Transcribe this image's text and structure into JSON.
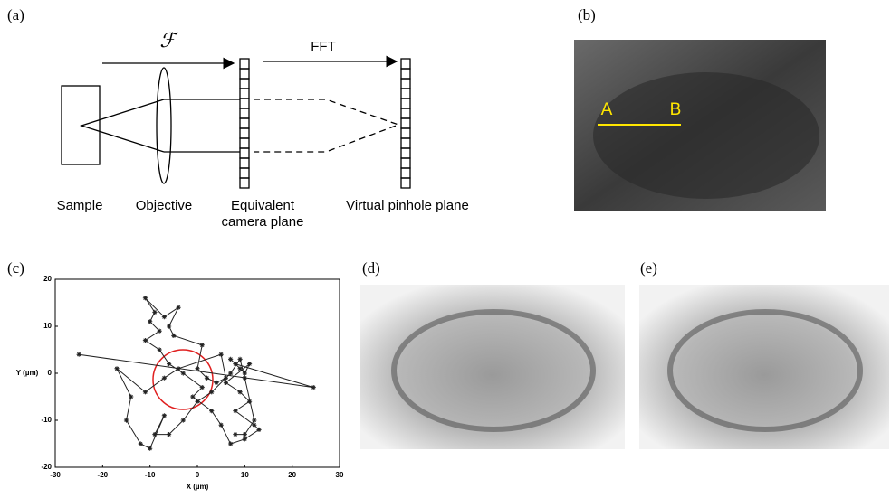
{
  "panels": {
    "a": "(a)",
    "b": "(b)",
    "c": "(c)",
    "d": "(d)",
    "e": "(e)"
  },
  "diagram": {
    "fourier": "ℱ",
    "fft": "FFT",
    "sample": "Sample",
    "objective": "Objective",
    "camera_plane": [
      "Equivalent",
      "camera plane"
    ],
    "pinhole_plane": "Virtual pinhole plane"
  },
  "image_b": {
    "point_a": "A",
    "point_b": "B"
  },
  "chart_data": {
    "type": "line",
    "xlabel": "X (µm)",
    "ylabel": "Y (µm)",
    "x": [
      -25,
      24.5,
      8,
      9,
      7,
      10,
      11,
      6,
      9,
      11,
      8,
      12,
      13,
      10,
      7,
      5,
      3,
      -1,
      1,
      -3,
      -6,
      -8,
      -11,
      -8,
      -10,
      -9,
      -11,
      -7,
      -4,
      -6,
      -5,
      1,
      0,
      2,
      4,
      6,
      5,
      -4,
      -7,
      -11,
      -17,
      -14,
      -15,
      -12,
      -10,
      -7,
      -9,
      -6,
      -3,
      0,
      3,
      7,
      9,
      10,
      12,
      10,
      8
    ],
    "series": [
      {
        "color": "#222222",
        "values": [
          4,
          -3,
          2,
          1,
          3,
          0,
          2,
          -2,
          -4,
          -6,
          -8,
          -11,
          -12,
          -14,
          -15,
          -11,
          -8,
          -5,
          -3,
          0,
          2,
          5,
          7,
          9,
          11,
          13,
          16,
          12,
          14,
          10,
          8,
          6,
          1,
          -1,
          -2,
          -1,
          4,
          1,
          -1,
          -4,
          1,
          -5,
          -10,
          -15,
          -16,
          -9,
          -13,
          -13,
          -10,
          -6,
          -4,
          0,
          3,
          -1,
          -10,
          -13,
          -13
        ]
      }
    ],
    "xlim": [
      -30,
      30
    ],
    "xticks": [
      -30,
      -20,
      -10,
      0,
      10,
      20,
      30
    ],
    "ylim": [
      -20,
      20
    ],
    "yticks": [
      -20,
      -10,
      0,
      10,
      20
    ]
  }
}
